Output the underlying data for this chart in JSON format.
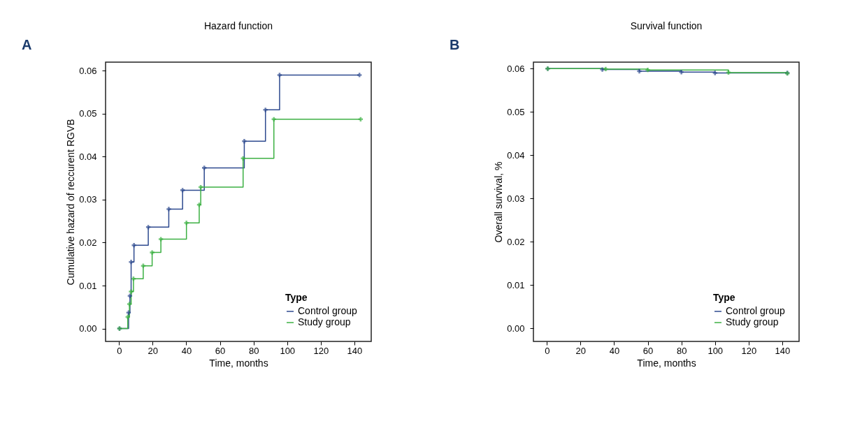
{
  "chart_data": [
    {
      "type": "step",
      "title": "Hazard function",
      "xlabel": "Time, months",
      "ylabel": "Cumulative hazard of reccurent RGVB",
      "legend_title": "Type",
      "legend": "bottom right",
      "grid": false,
      "marker": "cross",
      "annotations": [
        "A"
      ],
      "xlim": [
        -8,
        150
      ],
      "xticks": [
        0,
        20,
        40,
        60,
        80,
        100,
        120,
        140
      ],
      "ylim": [
        -0.003,
        0.062
      ],
      "yticks": [
        {
          "value": 0,
          "label": "0.00"
        },
        {
          "value": 0.01,
          "label": "0.01"
        },
        {
          "value": 0.02,
          "label": "0.02"
        },
        {
          "value": 0.03,
          "label": "0.03"
        },
        {
          "value": 0.04,
          "label": "0.04"
        },
        {
          "value": 0.05,
          "label": "0.05"
        },
        {
          "value": 0.06,
          "label": "0.06"
        }
      ],
      "series": [
        {
          "name": "Control group",
          "color": "#2e4a8f",
          "x": [
            0.3,
            5.7,
            6.5,
            7.2,
            8.9,
            17.4,
            29.6,
            37.8,
            50.7,
            74.5,
            87.1,
            95.5,
            143
          ],
          "values": [
            0,
            0.0037,
            0.0076,
            0.0155,
            0.0194,
            0.0236,
            0.0278,
            0.0322,
            0.0374,
            0.0436,
            0.0509,
            0.059,
            0.059
          ]
        },
        {
          "name": "Study group",
          "color": "#3cb043",
          "x": [
            0.3,
            5.2,
            6.2,
            7.2,
            8.6,
            14.4,
            19.7,
            24.9,
            40.1,
            47.7,
            48.6,
            73.8,
            92.1,
            143.7
          ],
          "values": [
            0,
            0.0027,
            0.0057,
            0.0086,
            0.0116,
            0.0146,
            0.0177,
            0.0208,
            0.0246,
            0.0288,
            0.0329,
            0.0396,
            0.0487,
            0.0487
          ]
        }
      ]
    },
    {
      "type": "step",
      "title": "Survival function",
      "xlabel": "Time, months",
      "ylabel": "Overall survival, %",
      "legend_title": "Type",
      "legend": "bottom right",
      "grid": false,
      "marker": "cross",
      "annotations": [
        "B"
      ],
      "xlim": [
        -8,
        150
      ],
      "xticks": [
        0,
        20,
        40,
        60,
        80,
        100,
        120,
        140
      ],
      "ylim": [
        -0.003,
        0.0615
      ],
      "yticks": [
        {
          "value": 0,
          "label": "0.00"
        },
        {
          "value": 0.01,
          "label": "0.01"
        },
        {
          "value": 0.02,
          "label": "0.02"
        },
        {
          "value": 0.03,
          "label": "0.03"
        },
        {
          "value": 0.04,
          "label": "0.04"
        },
        {
          "value": 0.05,
          "label": "0.05"
        },
        {
          "value": 0.06,
          "label": "0.06"
        }
      ],
      "series": [
        {
          "name": "Control group",
          "color": "#2e4a8f",
          "x": [
            0.5,
            33,
            55,
            80,
            100,
            143
          ],
          "values": [
            0.06,
            0.0598,
            0.0594,
            0.0592,
            0.059,
            0.059
          ]
        },
        {
          "name": "Study group",
          "color": "#3cb043",
          "x": [
            0.5,
            35,
            60,
            108,
            143
          ],
          "values": [
            0.06,
            0.0599,
            0.0597,
            0.0591,
            0.0589
          ]
        }
      ]
    }
  ]
}
